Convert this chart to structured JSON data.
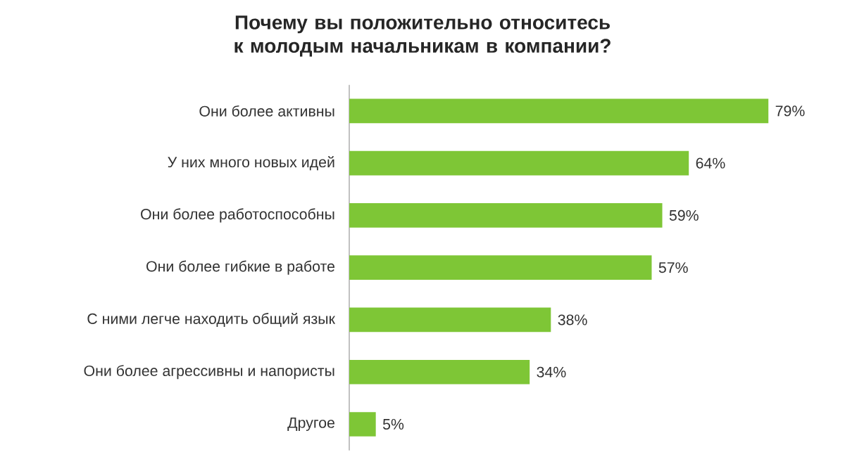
{
  "chart_data": {
    "type": "bar",
    "orientation": "horizontal",
    "title": "Почему вы положительно относитесь к молодым начальникам в компании?",
    "categories": [
      "Они более  активны",
      "У них много новых идей",
      "Они более  работоспособны",
      "Они более гибкие  в работе",
      "С ними легче находить общий язык",
      "Они более агрессивны и напористы",
      "Другое"
    ],
    "values": [
      79,
      64,
      59,
      57,
      38,
      34,
      5
    ],
    "value_labels": [
      "79%",
      "64%",
      "59%",
      "57%",
      "38%",
      "34%",
      "5%"
    ],
    "color": "#7ec636",
    "tick_labels": "y"
  }
}
